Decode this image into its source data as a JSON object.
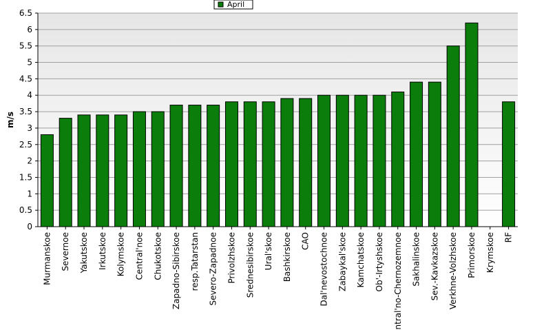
{
  "chart_data": {
    "type": "bar",
    "ylabel": "m/s",
    "xlabel": "",
    "ylim": [
      0,
      6.5
    ],
    "ytick_step": 0.5,
    "y_tick_labels": [
      "0",
      "0.5",
      "1",
      "1.5",
      "2",
      "2.5",
      "3",
      "3.5",
      "4",
      "4.5",
      "5",
      "5.5",
      "6",
      "6.5"
    ],
    "grid": true,
    "legend_position": "top-center",
    "categories": [
      "Murmanskoe",
      "Severnoe",
      "Yakutskoe",
      "Irkutskoe",
      "Kolymskoe",
      "Central'noe",
      "Chukotskoe",
      "Zapadno-Sibirskoe",
      "resp.Tatarstan",
      "Severo-Zapadnoe",
      "Privolzhskoe",
      "Srednesibirskoe",
      "Ural'skoe",
      "Bashkirskoe",
      "CAO",
      "Dal'nevostochnoe",
      "Zabaykal'skoe",
      "Kamchatskoe",
      "Ob'-Irtyshskoe",
      "Central'no-Chernozemnoe",
      "Sakhalinskoe",
      "Sev.-Kavkazskoe",
      "Verkhne-Volzhskoe",
      "Primorskoe",
      "Krymskoe",
      "RF"
    ],
    "series": [
      {
        "name": "April",
        "values": [
          2.8,
          3.3,
          3.4,
          3.4,
          3.4,
          3.5,
          3.5,
          3.7,
          3.7,
          3.7,
          3.8,
          3.8,
          3.8,
          3.9,
          3.9,
          4.0,
          4.0,
          4.0,
          4.0,
          4.1,
          4.4,
          4.4,
          5.5,
          6.2,
          null,
          3.8
        ]
      }
    ],
    "colors": {
      "bar": "#0a7d0a",
      "bar_edge": "#000000",
      "plot_bg_top": "#e6e6e6",
      "plot_bg_bottom": "#ffffff",
      "grid": "#a0a0a0"
    }
  }
}
